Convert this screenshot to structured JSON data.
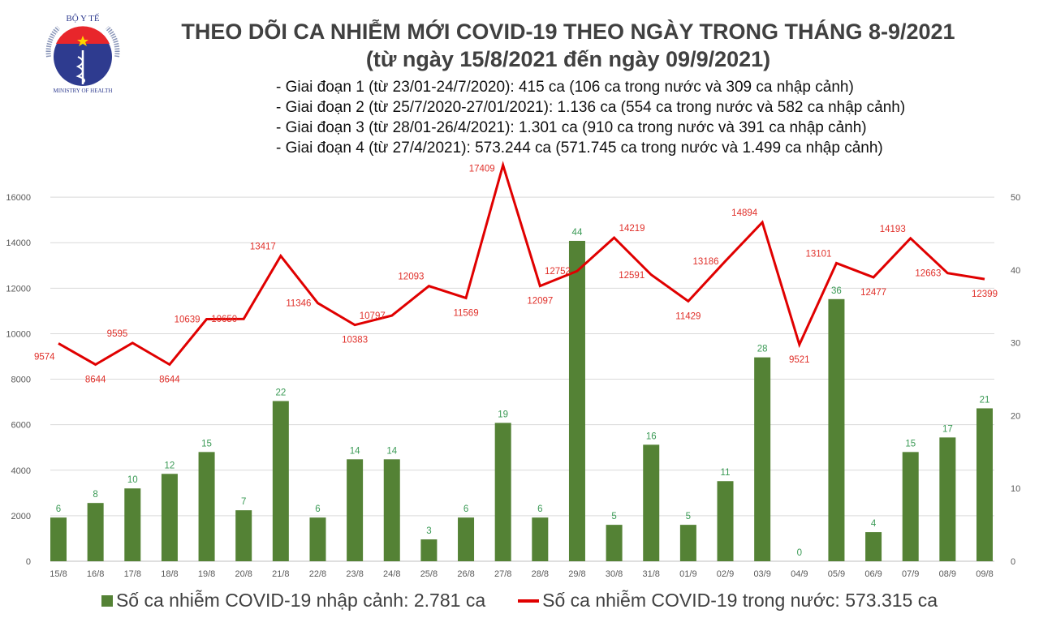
{
  "header": {
    "title_line1": "THEO DÕI CA NHIỄM MỚI COVID-19 THEO NGÀY TRONG THÁNG 8-9/2021",
    "title_line2": "(từ ngày 15/8/2021 đến ngày 09/9/2021)",
    "notes": [
      "- Giai đoạn 1 (từ 23/01-24/7/2020): 415 ca (106 ca trong nước và 309 ca nhập cảnh)",
      "- Giai đoạn 2 (từ 25/7/2020-27/01/2021): 1.136 ca (554 ca trong nước và 582 ca nhập cảnh)",
      "- Giai đoạn 3 (từ 28/01-26/4/2021): 1.301 ca (910 ca trong nước và 391 ca nhập cảnh)",
      "- Giai đoạn 4 (từ 27/4/2021): 573.244 ca (571.745 ca trong nước và 1.499 ca nhập cảnh)"
    ],
    "logo": {
      "top_text": "BỘ Y TẾ",
      "bottom_text": "MINISTRY OF HEALTH"
    }
  },
  "chart_data": {
    "type": "bar+line",
    "categories": [
      "15/8",
      "16/8",
      "17/8",
      "18/8",
      "19/8",
      "20/8",
      "21/8",
      "22/8",
      "23/8",
      "24/8",
      "25/8",
      "26/8",
      "27/8",
      "28/8",
      "29/8",
      "30/8",
      "31/8",
      "01/9",
      "02/9",
      "03/9",
      "04/9",
      "05/9",
      "06/9",
      "07/9",
      "08/9",
      "09/8"
    ],
    "series": [
      {
        "name": "Số ca nhiễm COVID-19 nhập cảnh: 2.781 ca",
        "type": "bar",
        "axis": "right",
        "color": "#548235",
        "values": [
          6,
          8,
          10,
          12,
          15,
          7,
          22,
          6,
          14,
          14,
          3,
          6,
          19,
          6,
          44,
          5,
          16,
          5,
          11,
          28,
          0,
          36,
          4,
          15,
          17,
          21
        ]
      },
      {
        "name": "Số ca nhiễm COVID-19 trong nước: 573.315 ca",
        "type": "line",
        "axis": "left",
        "color": "#e00000",
        "values": [
          9574,
          8644,
          9595,
          8644,
          10639,
          10650,
          13417,
          11346,
          10383,
          10797,
          12093,
          11569,
          17409,
          12097,
          12752,
          14219,
          12591,
          11429,
          13186,
          14894,
          9521,
          13101,
          12477,
          14193,
          12663,
          12399
        ]
      }
    ],
    "left_axis": {
      "ylim": [
        0,
        18000
      ],
      "ticks": [
        0,
        2000,
        4000,
        6000,
        8000,
        10000,
        12000,
        14000,
        16000
      ]
    },
    "right_axis": {
      "ylim": [
        0,
        56.25
      ],
      "ticks": [
        0,
        10,
        20,
        30,
        40,
        50
      ]
    },
    "grid": true,
    "legend_placement": "bottom"
  }
}
